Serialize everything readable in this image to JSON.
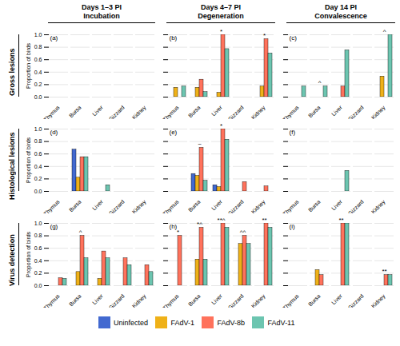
{
  "chart_data": [
    {
      "type": "bar",
      "title": "(a)",
      "column_title": "Days 1–3 PI\nIncubation",
      "row_title": "Gross lesions",
      "y_label": "Proportion of birds",
      "categories": [
        "Thymus",
        "Bursa",
        "Liver",
        "Gizzard",
        "Kidney"
      ],
      "series": [
        {
          "name": "Uninfected",
          "values": [
            0,
            0,
            0,
            0,
            0
          ]
        },
        {
          "name": "FAdV-1",
          "values": [
            0,
            0,
            0,
            0,
            0
          ]
        },
        {
          "name": "FAdV-8b",
          "values": [
            0,
            0,
            0,
            0,
            0
          ]
        },
        {
          "name": "FAdV-11",
          "values": [
            0,
            0,
            0,
            0,
            0
          ]
        }
      ],
      "ylim": [
        0,
        1.0
      ],
      "yticks": [
        {
          "value": 0,
          "label": "0.0"
        },
        0.2,
        0.4,
        0.6,
        0.8,
        {
          "value": 1.0,
          "label": "1.0"
        }
      ],
      "grid": true,
      "tick_labels": true,
      "legend": "bottom",
      "annotations": []
    },
    {
      "type": "bar",
      "title": "(b)",
      "column_title": "Days 4–7 PI\nDegeneration",
      "categories": [
        "Thymus",
        "Bursa",
        "Liver",
        "Gizzard",
        "Kidney"
      ],
      "series": [
        {
          "name": "Uninfected",
          "values": [
            0,
            0,
            0,
            0,
            0
          ]
        },
        {
          "name": "FAdV-1",
          "values": [
            0.15,
            0.15,
            0.07,
            0,
            0.17
          ]
        },
        {
          "name": "FAdV-8b",
          "values": [
            0,
            0.28,
            1.0,
            0,
            0.93
          ]
        },
        {
          "name": "FAdV-11",
          "values": [
            0.17,
            0.08,
            0.77,
            0,
            0.7
          ]
        }
      ],
      "ylim": [
        0,
        1.0
      ],
      "yticks": [
        0,
        0.2,
        0.4,
        0.6,
        0.8,
        1.0
      ],
      "grid": true,
      "tick_labels": "x",
      "annotations": [
        {
          "category": "Liver",
          "text": "*"
        },
        {
          "category": "Kidney",
          "text": "*"
        }
      ]
    },
    {
      "type": "bar",
      "title": "(c)",
      "column_title": "Day 14 PI\nConvalescence",
      "categories": [
        "Thymus",
        "Bursa",
        "Liver",
        "Gizzard",
        "Kidney"
      ],
      "series": [
        {
          "name": "Uninfected",
          "values": [
            0,
            0,
            0,
            0,
            0
          ]
        },
        {
          "name": "FAdV-1",
          "values": [
            0,
            0,
            0,
            0,
            0.33
          ]
        },
        {
          "name": "FAdV-8b",
          "values": [
            0,
            0,
            0.17,
            0,
            0
          ]
        },
        {
          "name": "FAdV-11",
          "values": [
            0.17,
            0.17,
            0.75,
            0,
            1.0
          ]
        }
      ],
      "ylim": [
        0,
        1.0
      ],
      "yticks": [
        0,
        0.2,
        0.4,
        0.6,
        0.8,
        1.0
      ],
      "grid": true,
      "tick_labels": "x",
      "annotations": [
        {
          "category": "Bursa",
          "text": "^"
        },
        {
          "category": "Kidney",
          "text": "^"
        }
      ]
    },
    {
      "type": "bar",
      "title": "(d)",
      "row_title": "Histological lesions",
      "y_label": "Proportion of birds",
      "categories": [
        "Thymus",
        "Bursa",
        "Liver",
        "Gizzard",
        "Kidney"
      ],
      "series": [
        {
          "name": "Uninfected",
          "values": [
            0,
            0.67,
            0,
            0,
            0
          ]
        },
        {
          "name": "FAdV-1",
          "values": [
            0,
            0.22,
            0,
            0,
            0
          ]
        },
        {
          "name": "FAdV-8b",
          "values": [
            0,
            0.55,
            0,
            0,
            0
          ]
        },
        {
          "name": "FAdV-11",
          "values": [
            0,
            0.55,
            0.1,
            0,
            0
          ]
        }
      ],
      "ylim": [
        0,
        1.0
      ],
      "yticks": [
        {
          "value": 0,
          "label": "0.0"
        },
        0.2,
        0.4,
        0.6,
        0.8,
        {
          "value": 1.0,
          "label": "1.0"
        }
      ],
      "grid": true,
      "tick_labels": true,
      "annotations": []
    },
    {
      "type": "bar",
      "title": "(e)",
      "categories": [
        "Thymus",
        "Bursa",
        "Liver",
        "Gizzard",
        "Kidney"
      ],
      "series": [
        {
          "name": "Uninfected",
          "values": [
            0,
            0.28,
            0.1,
            0,
            0
          ]
        },
        {
          "name": "FAdV-1",
          "values": [
            0,
            0.25,
            0.07,
            0,
            0
          ]
        },
        {
          "name": "FAdV-8b",
          "values": [
            0,
            0.7,
            1.0,
            0.15,
            0.08
          ]
        },
        {
          "name": "FAdV-11",
          "values": [
            0,
            0.17,
            0.83,
            0,
            0
          ]
        }
      ],
      "ylim": [
        0,
        1.0
      ],
      "yticks": [
        0,
        0.2,
        0.4,
        0.6,
        0.8,
        1.0
      ],
      "grid": true,
      "tick_labels": "x",
      "annotations": [
        {
          "category": "Bursa",
          "text": "~"
        },
        {
          "category": "Liver",
          "text": "*"
        }
      ]
    },
    {
      "type": "bar",
      "title": "(f)",
      "categories": [
        "Thymus",
        "Bursa",
        "Liver",
        "Gizzard",
        "Kidney"
      ],
      "series": [
        {
          "name": "Uninfected",
          "values": [
            0,
            0,
            0,
            0,
            0
          ]
        },
        {
          "name": "FAdV-1",
          "values": [
            0,
            0,
            0,
            0,
            0
          ]
        },
        {
          "name": "FAdV-8b",
          "values": [
            0,
            0,
            0,
            0,
            0
          ]
        },
        {
          "name": "FAdV-11",
          "values": [
            0,
            0,
            0.33,
            0,
            0
          ]
        }
      ],
      "ylim": [
        0,
        1.0
      ],
      "yticks": [
        0,
        0.2,
        0.4,
        0.6,
        0.8,
        1.0
      ],
      "grid": true,
      "tick_labels": "x",
      "annotations": []
    },
    {
      "type": "bar",
      "title": "(g)",
      "row_title": "Virus detection",
      "y_label": "Proportion of birds",
      "categories": [
        "Thymus",
        "Bursa",
        "Liver",
        "Gizzard",
        "Kidney"
      ],
      "series": [
        {
          "name": "Uninfected",
          "values": [
            0,
            0,
            0,
            0,
            0
          ]
        },
        {
          "name": "FAdV-1",
          "values": [
            0,
            0.22,
            0.11,
            0,
            0
          ]
        },
        {
          "name": "FAdV-8b",
          "values": [
            0.12,
            0.8,
            0.55,
            0.44,
            0.33
          ]
        },
        {
          "name": "FAdV-11",
          "values": [
            0.11,
            0.44,
            0.44,
            0.33,
            0.22
          ]
        }
      ],
      "ylim": [
        0,
        1.0
      ],
      "yticks": [
        {
          "value": 0,
          "label": "0.0"
        },
        0.2,
        0.4,
        0.6,
        0.8,
        {
          "value": 1.0,
          "label": "1.0"
        }
      ],
      "grid": true,
      "tick_labels": true,
      "annotations": [
        {
          "category": "Bursa",
          "text": "^"
        }
      ]
    },
    {
      "type": "bar",
      "title": "(h)",
      "categories": [
        "Thymus",
        "Bursa",
        "Liver",
        "Gizzard",
        "Kidney"
      ],
      "series": [
        {
          "name": "Uninfected",
          "values": [
            0,
            0,
            0,
            0,
            0
          ]
        },
        {
          "name": "FAdV-1",
          "values": [
            0,
            0.42,
            0,
            0.67,
            0
          ]
        },
        {
          "name": "FAdV-8b",
          "values": [
            0.8,
            0.93,
            1.0,
            0.8,
            1.0
          ]
        },
        {
          "name": "FAdV-11",
          "values": [
            0,
            0.42,
            0.93,
            0.67,
            0.93
          ]
        }
      ],
      "ylim": [
        0,
        1.0
      ],
      "yticks": [
        0,
        0.2,
        0.4,
        0.6,
        0.8,
        1.0
      ],
      "grid": true,
      "tick_labels": "x",
      "annotations": [
        {
          "category": "Thymus",
          "text": "*"
        },
        {
          "category": "Bursa",
          "text": "*^"
        },
        {
          "category": "Liver",
          "text": "**^"
        },
        {
          "category": "Gizzard",
          "text": "^^"
        },
        {
          "category": "Kidney",
          "text": "**"
        }
      ]
    },
    {
      "type": "bar",
      "title": "(i)",
      "categories": [
        "Thymus",
        "Bursa",
        "Liver",
        "Gizzard",
        "Kidney"
      ],
      "series": [
        {
          "name": "Uninfected",
          "values": [
            0,
            0,
            0,
            0,
            0
          ]
        },
        {
          "name": "FAdV-1",
          "values": [
            0,
            0.25,
            0,
            0,
            0
          ]
        },
        {
          "name": "FAdV-8b",
          "values": [
            0,
            0.17,
            1.0,
            0,
            0.17
          ]
        },
        {
          "name": "FAdV-11",
          "values": [
            0,
            0,
            1.0,
            0,
            0.17
          ]
        }
      ],
      "ylim": [
        0,
        1.0
      ],
      "yticks": [
        0,
        0.2,
        0.4,
        0.6,
        0.8,
        1.0
      ],
      "grid": true,
      "tick_labels": "x",
      "annotations": [
        {
          "category": "Liver",
          "text": "**"
        },
        {
          "category": "Kidney",
          "text": "**"
        }
      ]
    }
  ]
}
